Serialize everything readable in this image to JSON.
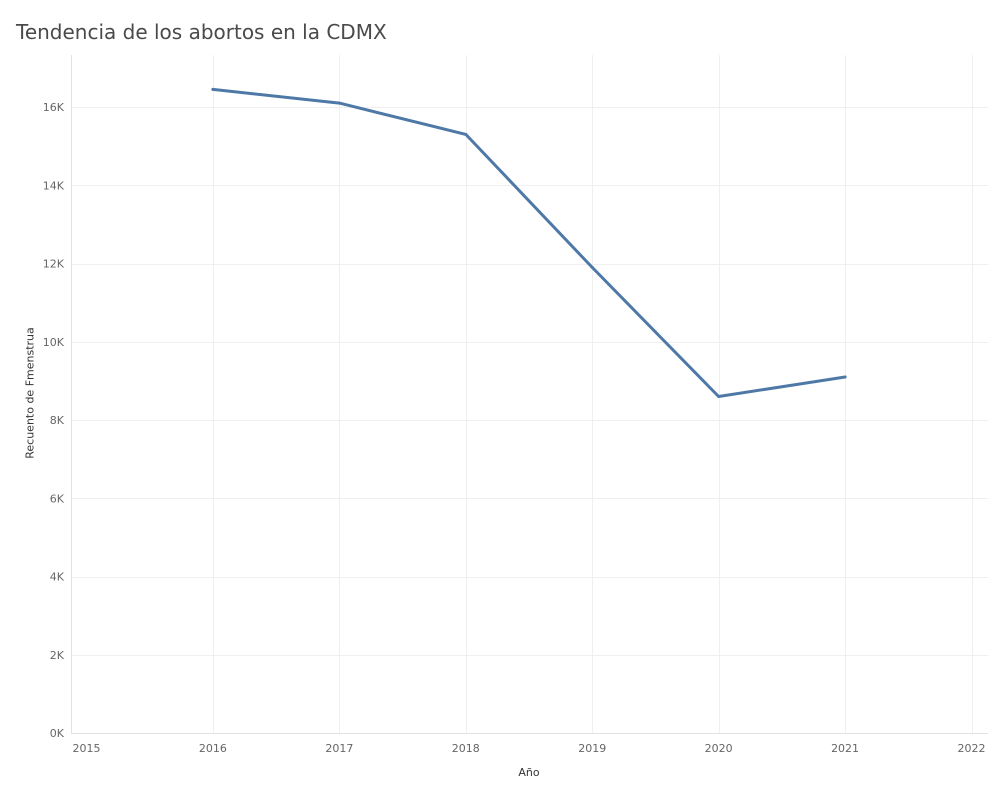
{
  "chart_data": {
    "type": "line",
    "title": "Tendencia de los abortos en la CDMX",
    "xlabel": "Año",
    "ylabel": "Recuento de Fmenstrua",
    "x": [
      2016,
      2017,
      2018,
      2019,
      2020,
      2021
    ],
    "series": [
      {
        "values": [
          16450,
          16100,
          15300,
          11900,
          8600,
          9100
        ]
      }
    ],
    "xlim": [
      2015,
      2022
    ],
    "ylim": [
      0,
      17000
    ],
    "x_ticks": [
      2015,
      2016,
      2017,
      2018,
      2019,
      2020,
      2021,
      2022
    ],
    "x_tick_labels": [
      "2015",
      "2016",
      "2017",
      "2018",
      "2019",
      "2020",
      "2021",
      "2022"
    ],
    "y_ticks": [
      0,
      2000,
      4000,
      6000,
      8000,
      10000,
      12000,
      14000,
      16000
    ],
    "y_tick_labels": [
      "0K",
      "2K",
      "4K",
      "6K",
      "8K",
      "10K",
      "12K",
      "14K",
      "16K"
    ],
    "grid": true,
    "legend": "none",
    "colors": {
      "line": "#4e79a7",
      "grid": "#efefef",
      "axis": "#e2e2e2",
      "tick_text": "#666666"
    }
  }
}
